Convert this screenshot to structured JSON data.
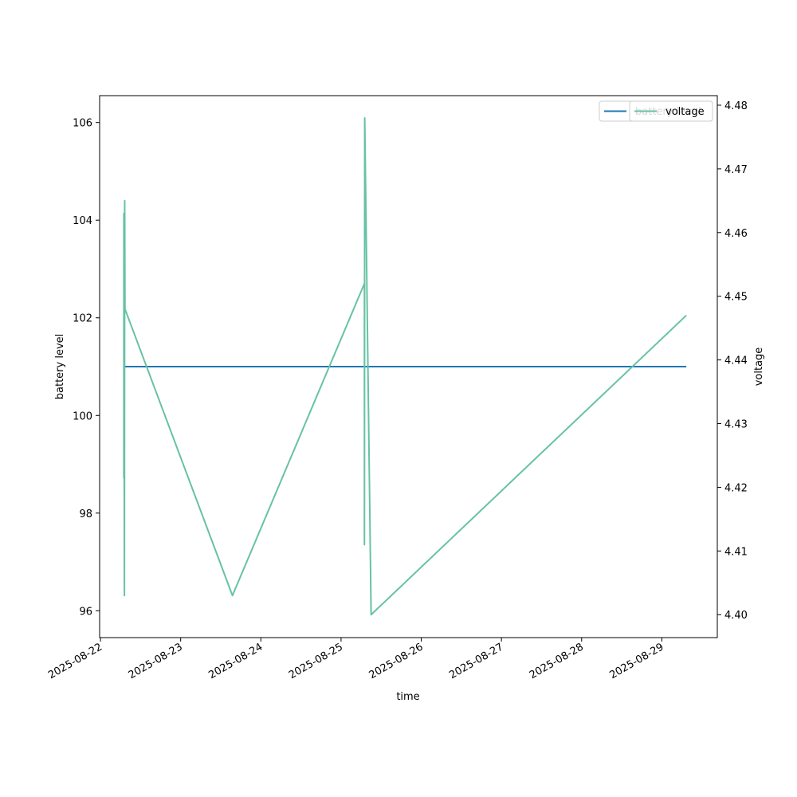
{
  "chart_data": {
    "type": "line",
    "xlabel": "time",
    "ylabel": "battery level",
    "y2label": "voltage",
    "xlim": [
      "2025-08-21T23:45",
      "2025-08-29T16:36"
    ],
    "ylim": [
      95.45,
      106.55
    ],
    "y2lim": [
      4.3964,
      4.4815
    ],
    "x_ticks": [
      "2025-08-22",
      "2025-08-23",
      "2025-08-24",
      "2025-08-25",
      "2025-08-26",
      "2025-08-27",
      "2025-08-28",
      "2025-08-29"
    ],
    "y_ticks": [
      96,
      98,
      100,
      102,
      104,
      106
    ],
    "y2_ticks": [
      4.4,
      4.41,
      4.42,
      4.43,
      4.44,
      4.45,
      4.46,
      4.47,
      4.48
    ],
    "series": [
      {
        "name": "battery level",
        "axis": "left",
        "color": "#1f77b4",
        "points": [
          {
            "x": "2025-08-22T07:00",
            "y": 101
          },
          {
            "x": "2025-08-29T07:20",
            "y": 101
          }
        ]
      },
      {
        "name": "voltage",
        "axis": "right",
        "color": "#66c2a5",
        "points": [
          {
            "x": "2025-08-22T07:00",
            "y": 4.425
          },
          {
            "x": "2025-08-22T07:00",
            "y": 4.4215
          },
          {
            "x": "2025-08-22T07:00",
            "y": 4.463
          },
          {
            "x": "2025-08-22T07:10",
            "y": 4.403
          },
          {
            "x": "2025-08-22T07:15",
            "y": 4.465
          },
          {
            "x": "2025-08-22T07:20",
            "y": 4.448
          },
          {
            "x": "2025-08-23T15:30",
            "y": 4.403
          },
          {
            "x": "2025-08-25T07:00",
            "y": 4.452
          },
          {
            "x": "2025-08-25T07:00",
            "y": 4.411
          },
          {
            "x": "2025-08-25T07:05",
            "y": 4.478
          },
          {
            "x": "2025-08-25T09:00",
            "y": 4.4
          },
          {
            "x": "2025-08-29T07:20",
            "y": 4.447
          }
        ]
      }
    ],
    "legend": {
      "placement": "top-right",
      "entries": [
        "battery level",
        "voltage"
      ]
    }
  }
}
